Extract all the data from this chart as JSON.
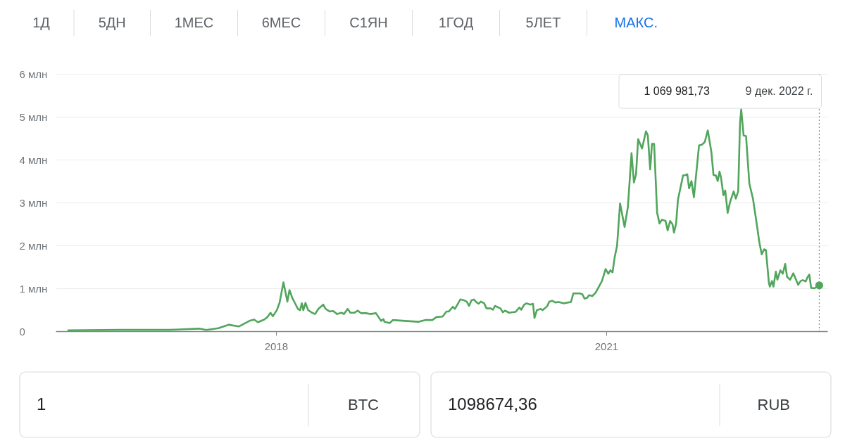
{
  "chart_data": {
    "type": "line",
    "x": [
      "2016-02-12",
      "2016-08-01",
      "2017-01-11",
      "2017-04-22",
      "2017-05-15",
      "2017-06-24",
      "2017-07-29",
      "2017-08-31",
      "2017-10-05",
      "2017-10-21",
      "2017-11-02",
      "2017-11-23",
      "2017-12-04",
      "2017-12-14",
      "2017-12-22",
      "2018-01-04",
      "2018-01-13",
      "2018-01-26",
      "2018-02-08",
      "2018-02-15",
      "2018-02-24",
      "2018-03-15",
      "2018-03-22",
      "2018-03-28",
      "2018-04-02",
      "2018-04-09",
      "2018-04-18",
      "2018-05-01",
      "2018-05-11",
      "2018-05-22",
      "2018-06-07",
      "2018-06-15",
      "2018-06-28",
      "2018-07-10",
      "2018-07-23",
      "2018-08-07",
      "2018-08-15",
      "2018-08-27",
      "2018-09-05",
      "2018-09-18",
      "2018-09-30",
      "2018-10-10",
      "2018-10-27",
      "2018-11-10",
      "2018-11-29",
      "2018-12-16",
      "2018-12-24",
      "2018-12-27",
      "2019-01-14",
      "2019-01-24",
      "2019-03-05",
      "2019-04-20",
      "2019-05-11",
      "2019-06-04",
      "2019-06-18",
      "2019-07-08",
      "2019-07-21",
      "2019-07-29",
      "2019-08-11",
      "2019-08-18",
      "2019-09-05",
      "2019-09-17",
      "2019-09-26",
      "2019-10-04",
      "2019-10-12",
      "2019-10-20",
      "2019-10-29",
      "2019-11-05",
      "2019-11-12",
      "2019-11-23",
      "2019-12-01",
      "2019-12-15",
      "2019-12-22",
      "2019-12-29",
      "2020-01-16",
      "2020-01-24",
      "2020-01-31",
      "2020-02-14",
      "2020-03-06",
      "2020-03-19",
      "2020-03-25",
      "2020-04-04",
      "2020-04-12",
      "2020-04-24",
      "2020-05-03",
      "2020-05-08",
      "2020-05-16",
      "2020-05-29",
      "2020-06-04",
      "2020-06-19",
      "2020-06-26",
      "2020-07-06",
      "2020-07-16",
      "2020-07-27",
      "2020-08-12",
      "2020-09-06",
      "2020-09-14",
      "2020-10-05",
      "2020-10-14",
      "2020-10-21",
      "2020-10-30",
      "2020-11-05",
      "2020-11-16",
      "2020-11-27",
      "2020-12-11",
      "2020-12-18",
      "2020-12-30",
      "2021-01-08",
      "2021-01-15",
      "2021-01-22",
      "2021-01-29",
      "2021-02-06",
      "2021-02-16",
      "2021-03-03",
      "2021-03-14",
      "2021-03-26",
      "2021-04-03",
      "2021-04-10",
      "2021-04-17",
      "2021-04-30",
      "2021-05-13",
      "2021-05-19",
      "2021-05-27",
      "2021-06-02",
      "2021-06-09",
      "2021-06-19",
      "2021-06-27",
      "2021-07-05",
      "2021-07-17",
      "2021-07-24",
      "2021-08-01",
      "2021-08-09",
      "2021-08-14",
      "2021-08-21",
      "2021-08-27",
      "2021-09-13",
      "2021-09-21",
      "2021-09-27",
      "2021-10-03",
      "2021-10-11",
      "2021-10-19",
      "2021-11-05",
      "2021-11-15",
      "2021-11-24",
      "2021-12-04",
      "2021-12-16",
      "2021-12-23",
      "2021-12-31",
      "2022-01-06",
      "2022-01-12",
      "2022-01-17",
      "2022-01-25",
      "2022-01-31",
      "2022-02-08",
      "2022-02-16",
      "2022-02-28",
      "2022-03-07",
      "2022-03-15",
      "2022-03-21",
      "2022-03-25",
      "2022-04-02",
      "2022-04-10",
      "2022-04-21",
      "2022-05-03",
      "2022-05-17",
      "2022-05-24",
      "2022-06-01",
      "2022-06-09",
      "2022-06-15",
      "2022-06-25",
      "2022-06-28",
      "2022-07-05",
      "2022-07-10",
      "2022-07-18",
      "2022-07-23",
      "2022-08-02",
      "2022-08-10",
      "2022-08-18",
      "2022-08-24",
      "2022-09-03",
      "2022-09-14",
      "2022-09-30",
      "2022-10-08",
      "2022-10-15",
      "2022-10-25",
      "2022-10-31",
      "2022-11-06",
      "2022-11-12",
      "2022-11-23",
      "2022-12-09"
    ],
    "series": [
      {
        "color": "#52a55c",
        "values": [
          0.02,
          0.03,
          0.03,
          0.06,
          0.03,
          0.07,
          0.15,
          0.11,
          0.24,
          0.27,
          0.21,
          0.27,
          0.33,
          0.43,
          0.35,
          0.49,
          0.66,
          1.14,
          0.69,
          0.96,
          0.78,
          0.52,
          0.49,
          0.65,
          0.49,
          0.66,
          0.49,
          0.43,
          0.4,
          0.52,
          0.62,
          0.52,
          0.46,
          0.47,
          0.4,
          0.43,
          0.4,
          0.52,
          0.43,
          0.43,
          0.48,
          0.42,
          0.42,
          0.4,
          0.42,
          0.24,
          0.28,
          0.22,
          0.19,
          0.26,
          0.24,
          0.22,
          0.26,
          0.26,
          0.33,
          0.34,
          0.46,
          0.46,
          0.57,
          0.52,
          0.74,
          0.72,
          0.69,
          0.59,
          0.72,
          0.74,
          0.67,
          0.64,
          0.69,
          0.65,
          0.53,
          0.53,
          0.5,
          0.59,
          0.53,
          0.44,
          0.48,
          0.43,
          0.45,
          0.55,
          0.5,
          0.62,
          0.65,
          0.62,
          0.64,
          0.31,
          0.49,
          0.52,
          0.49,
          0.58,
          0.69,
          0.71,
          0.67,
          0.68,
          0.65,
          0.68,
          0.88,
          0.88,
          0.86,
          0.76,
          0.78,
          0.84,
          0.82,
          0.9,
          1.08,
          1.17,
          1.45,
          1.34,
          1.42,
          1.37,
          1.72,
          1.99,
          2.98,
          2.43,
          2.9,
          4.15,
          3.47,
          3.66,
          4.48,
          4.26,
          4.66,
          4.57,
          3.77,
          4.37,
          4.37,
          2.76,
          2.51,
          2.6,
          2.57,
          2.35,
          2.57,
          2.49,
          2.3,
          2.51,
          3.06,
          3.63,
          3.64,
          3.66,
          3.33,
          3.5,
          3.12,
          4.33,
          4.35,
          4.41,
          4.68,
          4.18,
          3.64,
          3.63,
          3.5,
          3.72,
          3.58,
          3.17,
          3.28,
          2.76,
          3.01,
          3.26,
          3.09,
          3.26,
          4.84,
          5.17,
          4.56,
          4.55,
          3.44,
          3.09,
          2.43,
          2.08,
          1.79,
          1.91,
          1.89,
          1.12,
          1.04,
          1.17,
          1.04,
          1.39,
          1.2,
          1.42,
          1.34,
          1.57,
          1.27,
          1.2,
          1.35,
          1.08,
          1.17,
          1.19,
          1.16,
          1.26,
          1.32,
          1.01,
          1.0,
          1.06998173
        ]
      },
      {
        "type": "scatter",
        "color": "#52a55c",
        "x": [
          "2022-12-09"
        ],
        "values": [
          1.06998173
        ]
      }
    ],
    "xlim": [
      "2016-01-01",
      "2023-01-05"
    ],
    "xticks": [
      "2018",
      "2021"
    ],
    "ylim": [
      0,
      6
    ],
    "yticks": [
      0,
      {
        "value": 1,
        "label": "1 млн"
      },
      {
        "value": 2,
        "label": "2 млн"
      },
      {
        "value": 3,
        "label": "3 млн"
      },
      {
        "value": 4,
        "label": "4 млн"
      },
      {
        "value": 5,
        "label": "5 млн"
      },
      {
        "value": 6,
        "label": "6 млн"
      }
    ],
    "grid": "y",
    "ref_lines": [
      {
        "axis": "x",
        "value": "2022-12-09",
        "line_style": "dotted",
        "color": "#80868b",
        "label": "1 069 981,73  9 дек. 2022 г."
      }
    ],
    "annotations": [
      "1Д",
      "5ДН",
      "1МЕС",
      "6МЕС",
      "С1ЯН",
      "1ГОД",
      "5ЛЕТ",
      "МАКС.",
      "1",
      "BTC",
      "1098674,36",
      "RUB"
    ]
  }
}
